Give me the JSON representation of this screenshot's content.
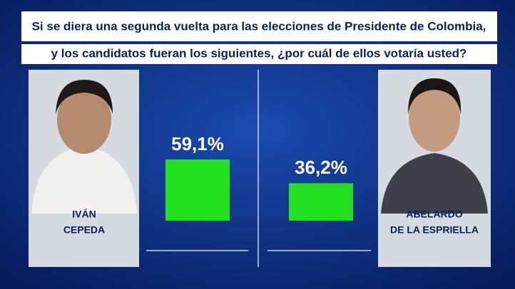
{
  "chart_data": {
    "type": "bar",
    "title": [
      "Si se diera una segunda vuelta para las elecciones de Presidente de Colombia,",
      "y los candidatos fueran los siguientes, ¿por cuál de ellos votaría usted?"
    ],
    "categories": [
      [
        "IVÁN",
        "CEPEDA"
      ],
      [
        "ABELARDO",
        "DE LA ESPRIELLA"
      ]
    ],
    "values": [
      59.1,
      36.2
    ],
    "value_labels": [
      "59,1%",
      "36,2%"
    ],
    "color": "#22e01f"
  }
}
